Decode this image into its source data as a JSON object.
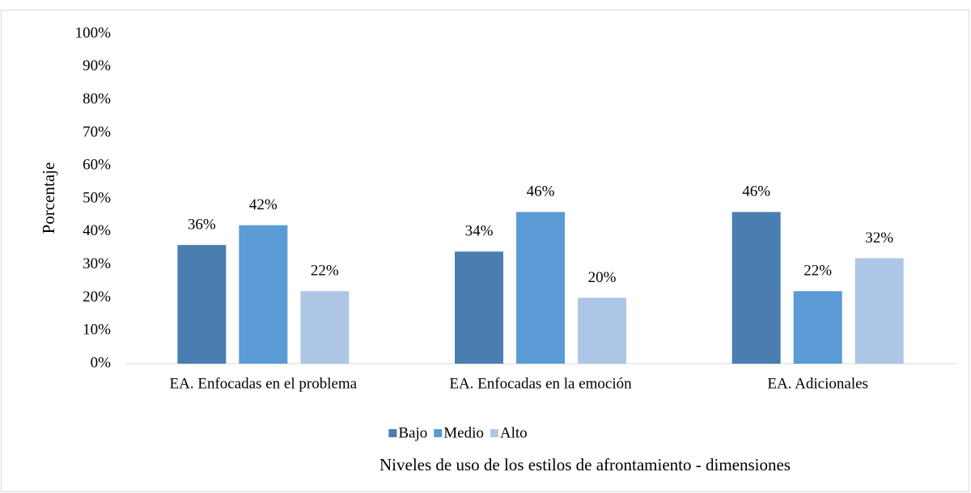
{
  "chart_data": {
    "type": "bar",
    "x_label": "Niveles de uso de los estilos de afrontamiento - dimensiones",
    "y_label": "Porcentaje",
    "categories": [
      "EA. Enfocadas en el problema",
      "EA. Enfocadas en la emoción",
      "EA. Adicionales"
    ],
    "series": [
      {
        "name": "Bajo",
        "color": "#4a7eb0",
        "values": [
          36,
          34,
          46
        ],
        "value_labels": [
          "36%",
          "34%",
          "46%"
        ]
      },
      {
        "name": "Medio",
        "color": "#5b9bd5",
        "values": [
          42,
          46,
          22
        ],
        "value_labels": [
          "42%",
          "46%",
          "22%"
        ]
      },
      {
        "name": "Alto",
        "color": "#aec6e6",
        "values": [
          22,
          20,
          32
        ],
        "value_labels": [
          "22%",
          "20%",
          "32%"
        ]
      }
    ],
    "ylim": [
      0,
      100
    ],
    "yticks": [
      {
        "value": 0,
        "label": "0%"
      },
      {
        "value": 10,
        "label": "10%"
      },
      {
        "value": 20,
        "label": "20%"
      },
      {
        "value": 30,
        "label": "30%"
      },
      {
        "value": 40,
        "label": "40%"
      },
      {
        "value": 50,
        "label": "50%"
      },
      {
        "value": 60,
        "label": "60%"
      },
      {
        "value": 70,
        "label": "70%"
      },
      {
        "value": 80,
        "label": "80%"
      },
      {
        "value": 90,
        "label": "90%"
      },
      {
        "value": 100,
        "label": "100%"
      }
    ],
    "grid": false,
    "legend": "bottom"
  }
}
